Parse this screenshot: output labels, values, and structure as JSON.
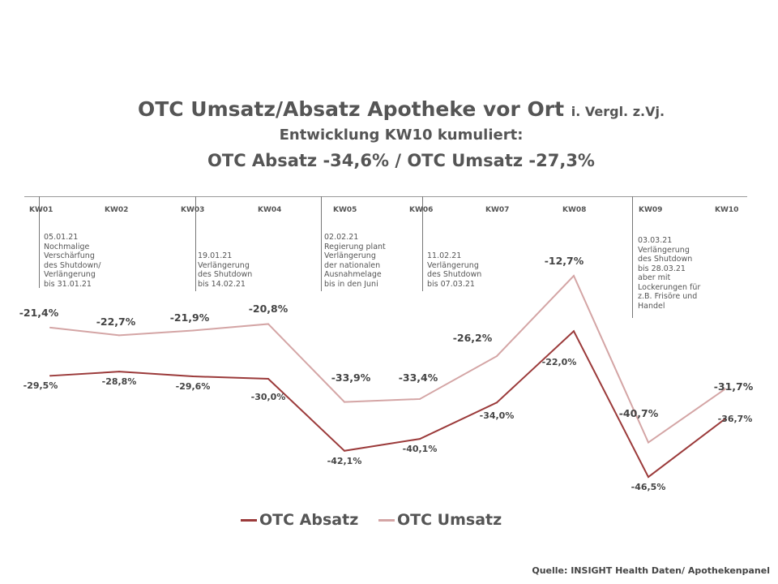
{
  "chart_data": {
    "type": "line",
    "title": "OTC Umsatz/Absatz Apotheke vor Ort",
    "title_suffix": "i. Vergl. z.Vj.",
    "subtitle1": "Entwicklung KW10 kumuliert:",
    "subtitle2": "OTC Absatz -34,6% / OTC Umsatz -27,3%",
    "categories": [
      "KW01",
      "KW02",
      "KW03",
      "KW04",
      "KW05",
      "KW06",
      "KW07",
      "KW08",
      "KW09",
      "KW10"
    ],
    "series": [
      {
        "name": "OTC Absatz",
        "color": "#9b3a3a",
        "values": [
          -29.5,
          -28.8,
          -29.6,
          -30.0,
          -42.1,
          -40.1,
          -34.0,
          -22.0,
          -46.5,
          -36.7
        ],
        "labels": [
          "-29,5%",
          "-28,8%",
          "-29,6%",
          "-30,0%",
          "-42,1%",
          "-40,1%",
          "-34,0%",
          "-22,0%",
          "-46,5%",
          "-36,7%"
        ]
      },
      {
        "name": "OTC Umsatz",
        "color": "#d4a5a5",
        "values": [
          -21.4,
          -22.7,
          -21.9,
          -20.8,
          -33.9,
          -33.4,
          -26.2,
          -12.7,
          -40.7,
          -31.7
        ],
        "labels": [
          "-21,4%",
          "-22,7%",
          "-21,9%",
          "-20,8%",
          "-33,9%",
          "-33,4%",
          "-26,2%",
          "-12,7%",
          "-40,7%",
          "-31,7%"
        ]
      }
    ],
    "ylabel": "",
    "xlabel": "",
    "ylim": [
      -48,
      -10
    ],
    "grid": false,
    "legend": "bottom",
    "annotations": [
      "05.01.21\nNochmalige\nVerschärfung\ndes Shutdown/\nVerlängerung\nbis 31.01.21",
      "19.01.21\nVerlängerung\ndes Shutdown\nbis 14.02.21",
      "02.02.21\nRegierung plant\nVerlängerung\nder nationalen\nAusnahmelage\nbis in den Juni",
      "11.02.21\nVerlängerung\ndes Shutdown\nbis 07.03.21",
      "03.03.21\nVerlängerung\ndes Shutdown\nbis 28.03.21\naber mit\nLockerungen für\nz.B. Frisöre und\nHandel"
    ]
  },
  "source": "Quelle: INSIGHT Health Daten/ Apothekenpanel"
}
